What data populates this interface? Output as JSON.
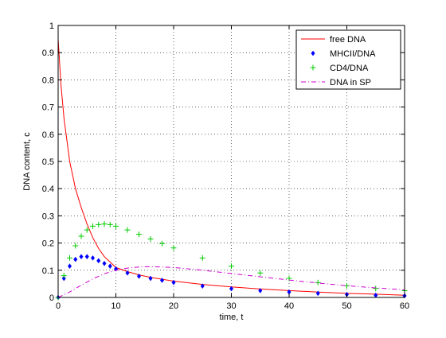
{
  "chart_data": {
    "type": "line",
    "title": "",
    "xlabel": "time, t",
    "ylabel": "DNA content, c",
    "xlim": [
      0,
      60
    ],
    "ylim": [
      0,
      1
    ],
    "xticks": [
      0,
      10,
      20,
      30,
      40,
      50,
      60
    ],
    "yticks": [
      0,
      0.1,
      0.2,
      0.3,
      0.4,
      0.5,
      0.6,
      0.7,
      0.8,
      0.9,
      1
    ],
    "grid": true,
    "legend_position": "top-right",
    "series": [
      {
        "name": "free DNA",
        "style": "solid-line",
        "color": "#ff0000",
        "x": [
          0,
          0.5,
          1,
          2,
          3,
          4,
          5,
          6,
          7,
          8,
          9,
          10,
          12,
          14,
          16,
          18,
          20,
          25,
          30,
          35,
          40,
          45,
          50,
          55,
          60
        ],
        "y": [
          0.95,
          0.78,
          0.66,
          0.5,
          0.4,
          0.33,
          0.27,
          0.22,
          0.18,
          0.15,
          0.13,
          0.11,
          0.095,
          0.083,
          0.074,
          0.067,
          0.06,
          0.048,
          0.039,
          0.031,
          0.025,
          0.02,
          0.015,
          0.012,
          0.008
        ]
      },
      {
        "name": "MHCII/DNA",
        "style": "diamond-markers",
        "color": "#0000ff",
        "x": [
          0,
          1,
          2,
          3,
          4,
          5,
          6,
          7,
          8,
          9,
          10,
          12,
          14,
          16,
          18,
          20,
          25,
          30,
          35,
          40,
          45,
          50,
          55,
          60
        ],
        "y": [
          0,
          0.07,
          0.115,
          0.14,
          0.15,
          0.15,
          0.145,
          0.135,
          0.125,
          0.115,
          0.105,
          0.09,
          0.078,
          0.07,
          0.063,
          0.055,
          0.042,
          0.032,
          0.025,
          0.02,
          0.015,
          0.011,
          0.008,
          0.006
        ]
      },
      {
        "name": "CD4/DNA",
        "style": "plus-markers",
        "color": "#00cc00",
        "x": [
          0,
          1,
          2,
          3,
          4,
          5,
          6,
          7,
          8,
          9,
          10,
          12,
          14,
          16,
          18,
          20,
          25,
          30,
          35,
          40,
          45,
          50,
          55,
          60
        ],
        "y": [
          0,
          0.08,
          0.145,
          0.19,
          0.225,
          0.248,
          0.262,
          0.268,
          0.27,
          0.268,
          0.262,
          0.248,
          0.232,
          0.215,
          0.198,
          0.182,
          0.145,
          0.115,
          0.09,
          0.07,
          0.055,
          0.043,
          0.033,
          0.025
        ]
      },
      {
        "name": "DNA in SP",
        "style": "dash-dot-line",
        "color": "#cc00cc",
        "x": [
          0,
          2,
          4,
          6,
          8,
          10,
          12,
          14,
          16,
          18,
          20,
          22,
          25,
          30,
          35,
          40,
          45,
          50,
          55,
          60
        ],
        "y": [
          0,
          0.02,
          0.045,
          0.068,
          0.087,
          0.1,
          0.108,
          0.112,
          0.113,
          0.112,
          0.11,
          0.106,
          0.1,
          0.088,
          0.076,
          0.064,
          0.053,
          0.043,
          0.035,
          0.028
        ]
      }
    ]
  }
}
